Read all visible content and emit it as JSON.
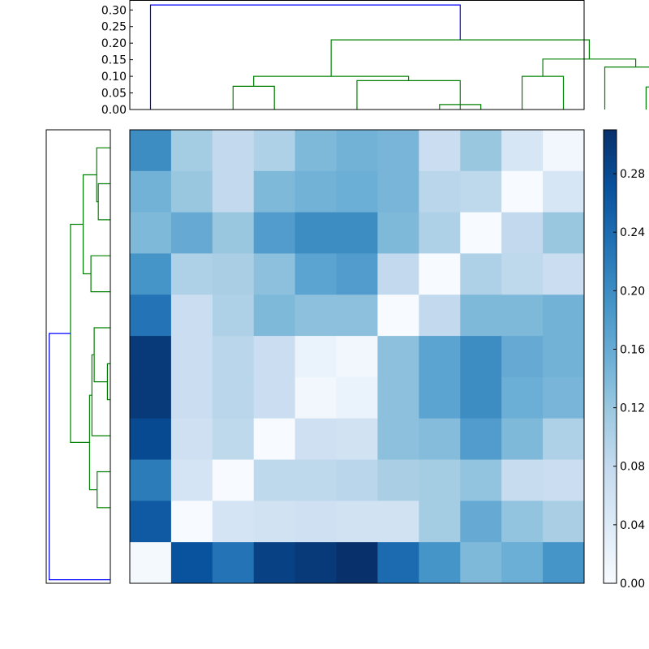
{
  "chart_data": [
    {
      "type": "dendrogram",
      "orientation": "top",
      "y_ticks": [
        "0.00",
        "0.05",
        "0.10",
        "0.15",
        "0.20",
        "0.25",
        "0.30"
      ],
      "ylim": [
        0,
        0.33
      ],
      "leaf_slots": 11,
      "links": [
        {
          "x": [
            7.5,
            7.5,
            8.5,
            8.5
          ],
          "y": [
            0.0,
            0.015,
            0.015,
            0.0
          ],
          "color": "#008000"
        },
        {
          "x": [
            5.5,
            5.5,
            8.0,
            8.0
          ],
          "y": [
            0.0,
            0.087,
            0.087,
            0.0
          ],
          "color": "#008000"
        },
        {
          "x": [
            2.5,
            2.5,
            3.5,
            3.5
          ],
          "y": [
            0.0,
            0.07,
            0.07,
            0.0
          ],
          "color": "#008000"
        },
        {
          "x": [
            3.0,
            3.0,
            6.75,
            6.75
          ],
          "y": [
            0.07,
            0.1,
            0.1,
            0.087
          ],
          "color": "#008000"
        },
        {
          "x": [
            9.5,
            9.5,
            10.5,
            10.5
          ],
          "y": [
            0.0,
            0.1,
            0.1,
            0.0
          ],
          "color": "#008000"
        },
        {
          "x": [
            12.5,
            12.5,
            13.5,
            13.5
          ],
          "y": [
            0.0,
            0.068,
            0.068,
            0.0
          ],
          "color": "#008000"
        },
        {
          "x": [
            11.5,
            11.5,
            13.0,
            13.0
          ],
          "y": [
            0.0,
            0.128,
            0.128,
            0.068
          ],
          "color": "#008000"
        },
        {
          "x": [
            10.0,
            10.0,
            12.25,
            12.25
          ],
          "y": [
            0.1,
            0.152,
            0.152,
            0.128
          ],
          "color": "#008000"
        },
        {
          "x": [
            4.875,
            4.875,
            11.125,
            11.125
          ],
          "y": [
            0.1,
            0.21,
            0.21,
            0.152
          ],
          "color": "#008000"
        },
        {
          "x": [
            0.5,
            0.5,
            8.0,
            8.0
          ],
          "y": [
            0.0,
            0.315,
            0.315,
            0.21
          ],
          "color": "#0000ff"
        }
      ]
    },
    {
      "type": "dendrogram",
      "orientation": "left",
      "xlim": [
        0,
        0.33
      ],
      "leaf_slots": 11,
      "links": [
        {
          "y": [
            1.5,
            1.5,
            2.5,
            2.5
          ],
          "x": [
            0.0,
            0.062,
            0.062,
            0.0
          ],
          "color": "#008000"
        },
        {
          "y": [
            0.5,
            0.5,
            2.0,
            2.0
          ],
          "x": [
            0.0,
            0.07,
            0.07,
            0.062
          ],
          "color": "#008000"
        },
        {
          "y": [
            3.5,
            3.5,
            4.5,
            4.5
          ],
          "x": [
            0.0,
            0.1,
            0.1,
            0.0
          ],
          "color": "#008000"
        },
        {
          "y": [
            1.25,
            1.25,
            4.0,
            4.0
          ],
          "x": [
            0.07,
            0.14,
            0.14,
            0.1
          ],
          "color": "#008000"
        },
        {
          "y": [
            6.5,
            6.5,
            7.5,
            7.5
          ],
          "x": [
            0.0,
            0.015,
            0.015,
            0.0
          ],
          "color": "#008000"
        },
        {
          "y": [
            5.5,
            5.5,
            7.0,
            7.0
          ],
          "x": [
            0.0,
            0.083,
            0.083,
            0.015
          ],
          "color": "#008000"
        },
        {
          "y": [
            6.25,
            6.25,
            8.5,
            8.5
          ],
          "x": [
            0.083,
            0.095,
            0.095,
            0.0
          ],
          "color": "#008000"
        },
        {
          "y": [
            9.5,
            9.5,
            10.5,
            10.5
          ],
          "x": [
            0.0,
            0.068,
            0.068,
            0.0
          ],
          "color": "#008000"
        },
        {
          "y": [
            7.375,
            7.375,
            10.0,
            10.0
          ],
          "x": [
            0.095,
            0.107,
            0.107,
            0.068
          ],
          "color": "#008000"
        },
        {
          "y": [
            2.625,
            2.625,
            8.6875,
            8.6875
          ],
          "x": [
            0.14,
            0.205,
            0.205,
            0.107
          ],
          "color": "#008000"
        },
        {
          "y": [
            5.66,
            5.66,
            12.5,
            12.5
          ],
          "x": [
            0.205,
            0.315,
            0.315,
            0.0
          ],
          "color": "#0000ff"
        }
      ]
    },
    {
      "type": "heatmap",
      "colormap": "Blues",
      "vmin": 0.0,
      "vmax": 0.31,
      "rows": 11,
      "cols": 11,
      "values": [
        [
          0.2,
          0.11,
          0.08,
          0.1,
          0.14,
          0.15,
          0.145,
          0.07,
          0.12,
          0.05,
          0.01
        ],
        [
          0.15,
          0.12,
          0.08,
          0.14,
          0.15,
          0.155,
          0.145,
          0.09,
          0.085,
          0.0,
          0.05
        ],
        [
          0.14,
          0.16,
          0.12,
          0.18,
          0.2,
          0.2,
          0.14,
          0.1,
          0.0,
          0.08,
          0.12
        ],
        [
          0.19,
          0.1,
          0.105,
          0.13,
          0.17,
          0.18,
          0.08,
          0.0,
          0.1,
          0.085,
          0.07
        ],
        [
          0.23,
          0.07,
          0.1,
          0.14,
          0.13,
          0.13,
          0.0,
          0.08,
          0.14,
          0.14,
          0.15
        ],
        [
          0.3,
          0.07,
          0.09,
          0.07,
          0.02,
          0.01,
          0.13,
          0.17,
          0.2,
          0.16,
          0.15
        ],
        [
          0.3,
          0.07,
          0.09,
          0.07,
          0.01,
          0.02,
          0.13,
          0.17,
          0.2,
          0.155,
          0.145
        ],
        [
          0.28,
          0.065,
          0.085,
          0.0,
          0.065,
          0.06,
          0.13,
          0.135,
          0.18,
          0.14,
          0.1
        ],
        [
          0.22,
          0.055,
          0.0,
          0.085,
          0.085,
          0.09,
          0.105,
          0.11,
          0.125,
          0.075,
          0.07
        ],
        [
          0.26,
          0.0,
          0.055,
          0.06,
          0.065,
          0.06,
          0.06,
          0.11,
          0.16,
          0.125,
          0.105
        ],
        [
          0.005,
          0.27,
          0.23,
          0.29,
          0.3,
          0.31,
          0.24,
          0.19,
          0.14,
          0.155,
          0.19
        ]
      ]
    },
    {
      "type": "colorbar",
      "colormap": "Blues",
      "vmin": 0.0,
      "vmax": 0.31,
      "ticks": [
        "0.00",
        "0.04",
        "0.08",
        "0.12",
        "0.16",
        "0.20",
        "0.24",
        "0.28"
      ]
    }
  ]
}
